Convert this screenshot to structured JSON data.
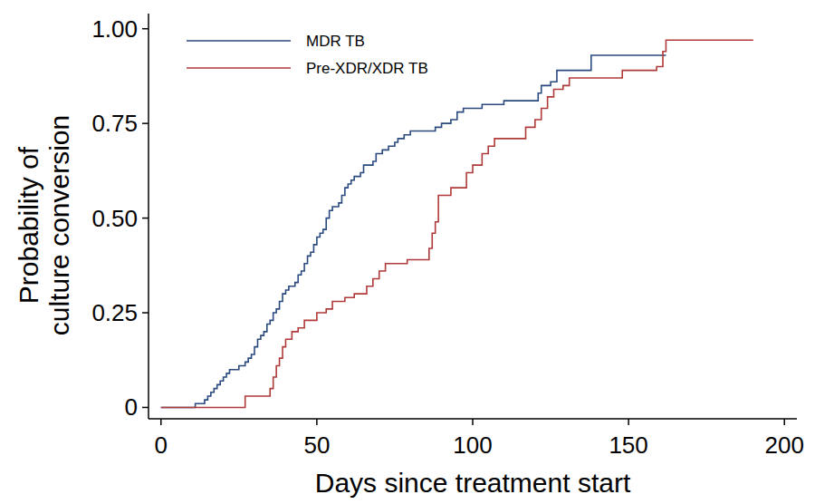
{
  "chart_data": {
    "type": "line",
    "xlabel": "Days since treatment start",
    "ylabel": [
      "Probability of",
      "culture conversion"
    ],
    "xlim": [
      -4,
      204
    ],
    "ylim": [
      -0.03,
      1.04
    ],
    "xticks": [
      0,
      50,
      100,
      150,
      200
    ],
    "yticks": [
      0,
      0.25,
      {
        "value": 0.5,
        "label": "0.50"
      },
      0.75,
      {
        "value": 1,
        "label": "1.00"
      }
    ],
    "legend": "upper left",
    "grid": false,
    "series": [
      {
        "name": "MDR TB",
        "color": "#2a4a7f",
        "line_style": "step",
        "x": [
          0,
          11,
          14,
          15,
          16,
          17,
          18,
          19,
          20,
          21,
          22,
          25,
          27,
          28,
          29,
          30,
          31,
          32,
          33,
          34,
          35,
          36,
          37,
          38,
          39,
          40,
          41,
          43,
          44,
          45,
          46,
          47,
          48,
          49,
          50,
          51,
          52,
          53,
          54,
          55,
          57,
          58,
          59,
          60,
          61,
          62,
          64,
          65,
          68,
          69,
          71,
          73,
          75,
          76,
          78,
          80,
          88,
          90,
          93,
          95,
          97,
          103,
          110,
          121,
          122,
          125,
          127,
          138,
          162
        ],
        "values": [
          0,
          0.01,
          0.02,
          0.03,
          0.04,
          0.05,
          0.06,
          0.07,
          0.08,
          0.09,
          0.1,
          0.11,
          0.12,
          0.13,
          0.14,
          0.16,
          0.18,
          0.19,
          0.2,
          0.22,
          0.23,
          0.25,
          0.26,
          0.28,
          0.3,
          0.31,
          0.32,
          0.33,
          0.35,
          0.36,
          0.38,
          0.4,
          0.41,
          0.43,
          0.45,
          0.46,
          0.47,
          0.5,
          0.52,
          0.53,
          0.54,
          0.56,
          0.58,
          0.59,
          0.6,
          0.61,
          0.62,
          0.64,
          0.65,
          0.67,
          0.68,
          0.69,
          0.7,
          0.71,
          0.72,
          0.73,
          0.74,
          0.75,
          0.76,
          0.78,
          0.79,
          0.8,
          0.81,
          0.83,
          0.85,
          0.86,
          0.89,
          0.93,
          0.93
        ]
      },
      {
        "name": "Pre-XDR/XDR TB",
        "color": "#b03a3a",
        "line_style": "step",
        "x": [
          0,
          27,
          35,
          36,
          37,
          38,
          39,
          40,
          42,
          44,
          46,
          50,
          53,
          55,
          59,
          62,
          66,
          68,
          70,
          72,
          79,
          86,
          87,
          88,
          89,
          93,
          98,
          100,
          103,
          105,
          107,
          117,
          120,
          122,
          124,
          126,
          129,
          131,
          148,
          159,
          161,
          162,
          190
        ],
        "values": [
          0,
          0.03,
          0.05,
          0.08,
          0.11,
          0.13,
          0.16,
          0.18,
          0.2,
          0.21,
          0.23,
          0.25,
          0.26,
          0.28,
          0.29,
          0.3,
          0.32,
          0.34,
          0.36,
          0.38,
          0.39,
          0.42,
          0.46,
          0.49,
          0.56,
          0.58,
          0.62,
          0.64,
          0.67,
          0.69,
          0.71,
          0.74,
          0.76,
          0.79,
          0.82,
          0.84,
          0.85,
          0.87,
          0.89,
          0.9,
          0.94,
          0.97,
          0.97
        ]
      }
    ]
  }
}
